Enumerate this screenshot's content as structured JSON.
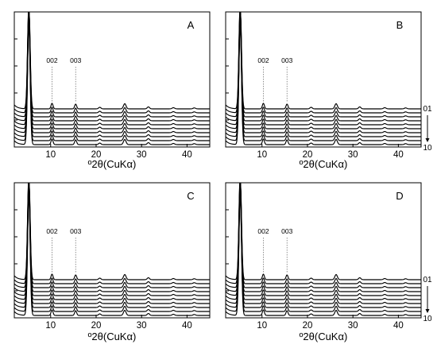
{
  "figure": {
    "panels": [
      {
        "letter": "A",
        "xlabel": "º2θ(CuKα)",
        "peak_labels": [
          "002",
          "003"
        ],
        "series_labels": []
      },
      {
        "letter": "B",
        "xlabel": "º2θ(CuKα)",
        "peak_labels": [
          "002",
          "003"
        ],
        "series_labels": [
          "01",
          "10"
        ]
      },
      {
        "letter": "C",
        "xlabel": "º2θ(CuKα)",
        "peak_labels": [
          "002",
          "003"
        ],
        "series_labels": []
      },
      {
        "letter": "D",
        "xlabel": "º2θ(CuKα)",
        "peak_labels": [
          "002",
          "003"
        ],
        "series_labels": [
          "01",
          "10"
        ]
      }
    ]
  },
  "chart_data": [
    {
      "type": "line",
      "panel": "A",
      "xlabel": "º2θ(CuKα)",
      "ylabel": "",
      "xlim": [
        2,
        45
      ],
      "x_ticks": [
        10,
        20,
        30,
        40
      ],
      "y_tick_count": 4,
      "trace_count": 10,
      "peaks_2theta": [
        5.2,
        10.3,
        15.5,
        20.8,
        26.3,
        31.5,
        37.0,
        41.6
      ],
      "peak_labels": [
        {
          "text": "002",
          "x": 10.3
        },
        {
          "text": "003",
          "x": 15.5
        }
      ],
      "series_labels": []
    },
    {
      "type": "line",
      "panel": "B",
      "xlabel": "º2θ(CuKα)",
      "ylabel": "",
      "xlim": [
        2,
        45
      ],
      "x_ticks": [
        10,
        20,
        30,
        40
      ],
      "y_tick_count": 4,
      "trace_count": 10,
      "peaks_2theta": [
        5.2,
        10.3,
        15.5,
        20.8,
        26.3,
        31.5,
        37.0,
        41.6
      ],
      "peak_labels": [
        {
          "text": "002",
          "x": 10.3
        },
        {
          "text": "003",
          "x": 15.5
        }
      ],
      "series_labels": [
        "01",
        "10"
      ]
    },
    {
      "type": "line",
      "panel": "C",
      "xlabel": "º2θ(CuKα)",
      "ylabel": "",
      "xlim": [
        2,
        45
      ],
      "x_ticks": [
        10,
        20,
        30,
        40
      ],
      "y_tick_count": 4,
      "trace_count": 10,
      "peaks_2theta": [
        5.2,
        10.3,
        15.5,
        20.8,
        26.3,
        31.5,
        37.0,
        41.6
      ],
      "peak_labels": [
        {
          "text": "002",
          "x": 10.3
        },
        {
          "text": "003",
          "x": 15.5
        }
      ],
      "series_labels": []
    },
    {
      "type": "line",
      "panel": "D",
      "xlabel": "º2θ(CuKα)",
      "ylabel": "",
      "xlim": [
        2,
        45
      ],
      "x_ticks": [
        10,
        20,
        30,
        40
      ],
      "y_tick_count": 4,
      "trace_count": 10,
      "peaks_2theta": [
        5.2,
        10.3,
        15.5,
        20.8,
        26.3,
        31.5,
        37.0,
        41.6
      ],
      "peak_labels": [
        {
          "text": "002",
          "x": 10.3
        },
        {
          "text": "003",
          "x": 15.5
        }
      ],
      "series_labels": [
        "01",
        "10"
      ]
    }
  ]
}
